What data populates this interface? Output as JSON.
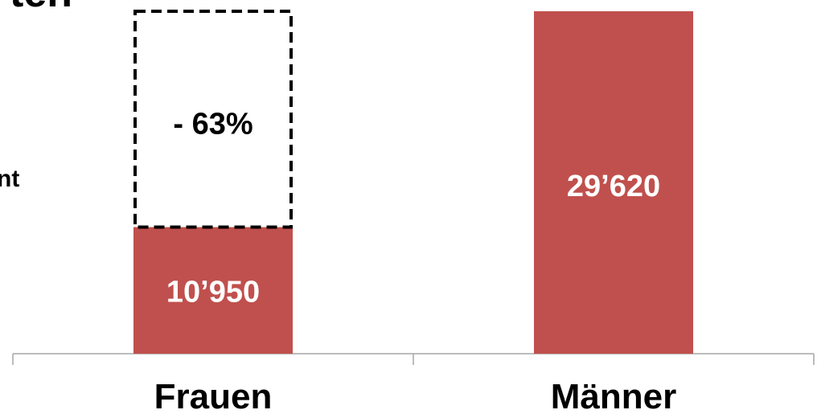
{
  "fragments": {
    "title_fragment": "ten",
    "side_fragment": "nt"
  },
  "chart_data": {
    "type": "bar",
    "categories": [
      "Frauen",
      "Männer"
    ],
    "values": [
      10950,
      29620
    ],
    "value_labels": [
      "10’950",
      "29’620"
    ],
    "gap": {
      "category": "Frauen",
      "from": 10950,
      "to": 29620,
      "label": "- 63%",
      "style": "dashed-outline"
    },
    "ylim": [
      0,
      29620
    ],
    "title": "",
    "xlabel": "",
    "ylabel": "",
    "grid": false,
    "legend": "none",
    "colors": {
      "bar": "#c0504d",
      "axis": "#a6a6a6",
      "gap_outline": "#000000",
      "label_on_bar": "#ffffff"
    }
  }
}
